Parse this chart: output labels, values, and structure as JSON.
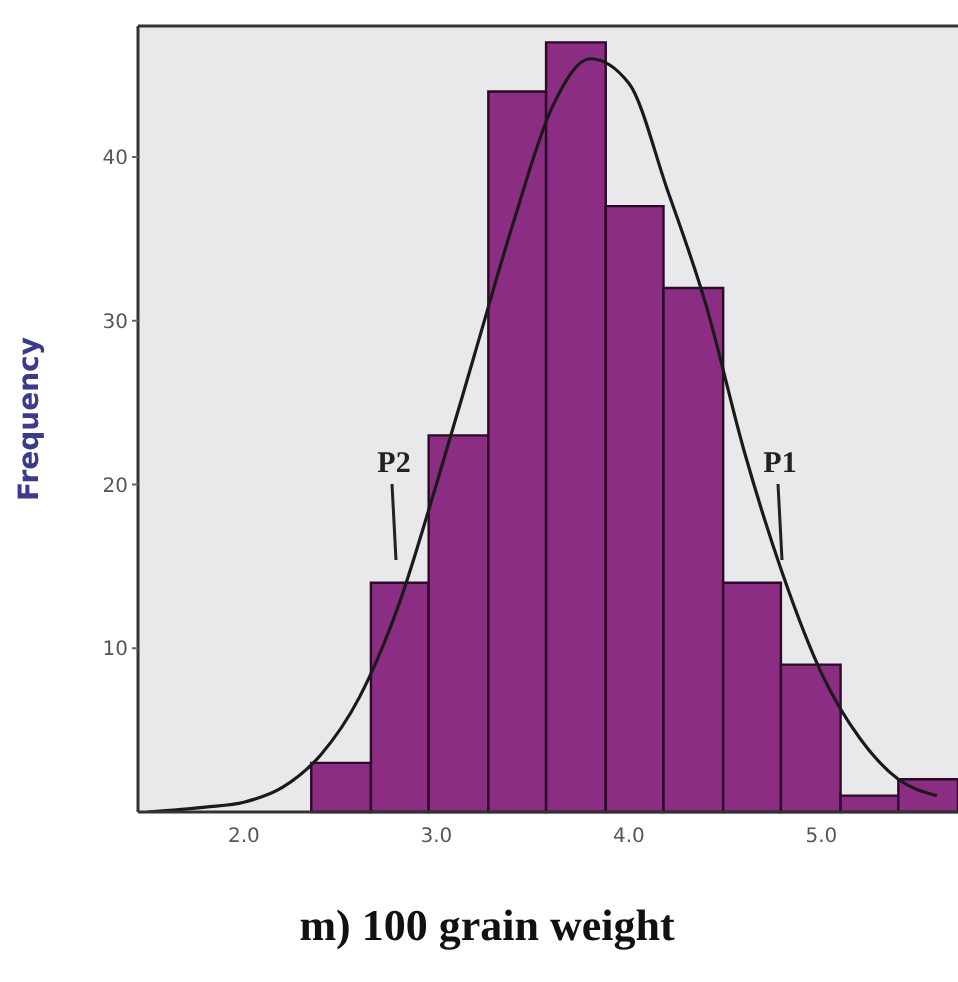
{
  "chart_data": {
    "type": "histogram",
    "title": "m) 100 grain weight",
    "ylabel": "Frequency",
    "bins": [
      2.35,
      2.66,
      2.96,
      3.27,
      3.57,
      3.88,
      4.18,
      4.49,
      4.79,
      5.1,
      5.4,
      5.71
    ],
    "values": [
      3,
      14,
      23,
      44,
      47,
      37,
      32,
      14,
      9,
      1,
      2
    ],
    "color": "#8b2d82",
    "series": [
      {
        "type": "line",
        "color": "#1a1a1a",
        "x": [
          1.5,
          1.8,
          2.0,
          2.2,
          2.4,
          2.6,
          2.8,
          3.0,
          3.2,
          3.4,
          3.6,
          3.8,
          4.0,
          4.2,
          4.4,
          4.6,
          4.8,
          5.0,
          5.2,
          5.4,
          5.6
        ],
        "values": [
          0,
          0.3,
          0.6,
          1.5,
          3.5,
          7,
          12.5,
          20,
          28,
          36,
          43,
          46,
          44.5,
          38,
          31,
          22,
          14.5,
          8.5,
          4.5,
          2,
          1
        ]
      }
    ],
    "annotations": [
      "P2",
      "P1"
    ],
    "xlim": [
      1.45,
      5.71
    ],
    "xticks": [
      {
        "value": 2,
        "label": "2.0"
      },
      {
        "value": 3,
        "label": "3.0"
      },
      {
        "value": 4,
        "label": "4.0"
      },
      {
        "value": 5,
        "label": "5.0"
      }
    ],
    "ylim": [
      0,
      48
    ],
    "yticks": [
      10,
      20,
      30,
      40
    ],
    "grid": false
  }
}
